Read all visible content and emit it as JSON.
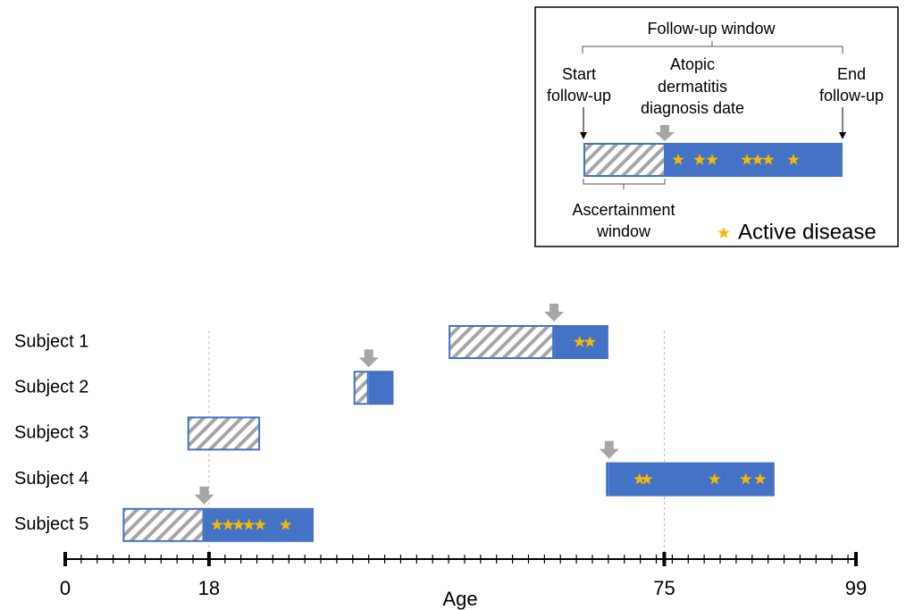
{
  "chart_data": {
    "type": "timeline",
    "xlabel": "Age",
    "xlim": [
      0,
      99
    ],
    "xticks": [
      0,
      18,
      75,
      99
    ],
    "grid": true,
    "follow_up_color": "#4472c4",
    "star_color": "#f5b800",
    "arrow_color": "#a6a6a6",
    "categories": [
      "Subject 1",
      "Subject 2",
      "Subject 3",
      "Subject 4",
      "Subject 5"
    ],
    "start": [
      48.0,
      36.1,
      15.3,
      67.7,
      7.2
    ],
    "diagnosis": [
      61.2,
      38.0,
      null,
      68.1,
      17.4
    ],
    "end": [
      68.0,
      41.1,
      24.4,
      88.8,
      31.1
    ],
    "active_disease": [
      [
        64.4,
        65.7
      ],
      [],
      [],
      [
        71.9,
        72.8,
        81.3,
        85.2,
        87.0
      ],
      [
        19.0,
        20.4,
        21.7,
        23.0,
        24.4,
        27.6
      ]
    ]
  },
  "legend": {
    "follow_up_window": "Follow-up window",
    "start_follow_up": [
      "Start",
      "follow-up"
    ],
    "diagnosis_date": [
      "Atopic",
      "dermatitis",
      "diagnosis date"
    ],
    "end_follow_up": [
      "End",
      "follow-up"
    ],
    "ascertainment_window": [
      "Ascertainment",
      "window"
    ],
    "active_disease": "Active disease"
  }
}
